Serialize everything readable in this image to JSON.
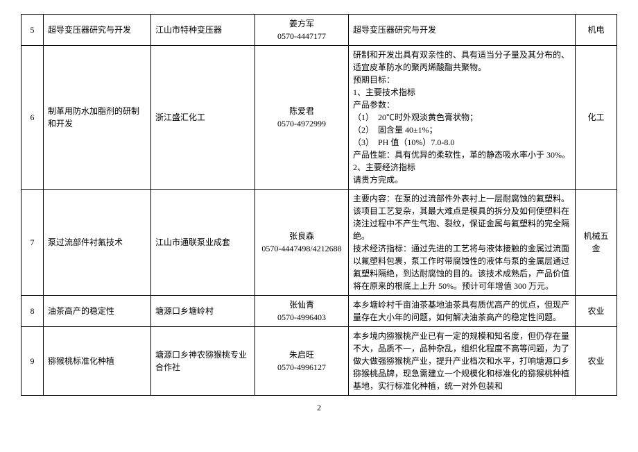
{
  "table": {
    "rows": [
      {
        "idx": "5",
        "name": "超导变压器研究与开发",
        "org": "江山市特种变压器",
        "contact": "姜方军\n0570-4447177",
        "desc": "超导变压器研究与开发",
        "cat": "机电"
      },
      {
        "idx": "6",
        "name": "制革用防水加脂剂的研制和开发",
        "org": "浙江盛汇化工",
        "contact": "陈爱君\n0570-4972999",
        "desc": "研制和开发出具有双亲性的、具有适当分子量及其分布的、适宜皮革防水的聚丙烯酸酯共聚物。\n预期目标：\n1、主要技术指标\n产品参数：\n（1）　20℃时外观淡黄色膏状物；\n（2）　固含量 40±1%；\n（3）　PH 值（10%）7.0-8.0\n产品性能：具有优异的柔软性，革的静态吸水率小于 30%。\n2、主要经济指标\n请贵方完成。",
        "cat": "化工"
      },
      {
        "idx": "7",
        "name": "泵过流部件衬氟技术",
        "org": "江山市通联泵业成套",
        "contact": "张良森\n0570-4447498/4212688",
        "desc": "主要内容：在泵的过流部件外表衬上一层耐腐蚀的氟塑料。该项目工艺复杂，其最大难点是模具的拆分及如何使塑料在浇注过程中不产生气泡、裂纹，保证金属与氟塑料的完全隔绝。\n技术经济指标：通过先进的工艺将与液体接触的金属过流面以氟塑料包裹，泵工作时带腐蚀性的液体与泵的金属层通过氟塑料隔绝，到达耐腐蚀的目的。该技术成熟后，产品价值将在原来的根底上上升 50%。预计可年增值 300 万元。",
        "cat": "机械五金"
      },
      {
        "idx": "8",
        "name": "油茶高产的稳定性",
        "org": "塘源口乡塘岭村",
        "contact": "张仙青\n0570-4996403",
        "desc": "本乡塘岭村千亩油茶基地油茶具有质优高产的优点，但现产量存在大小年的问题，如何解决油茶高产的稳定性问题。",
        "cat": "农业"
      },
      {
        "idx": "9",
        "name": "猕猴桃标准化种植",
        "org": "塘源口乡神农猕猴桃专业合作社",
        "contact": "朱启旺\n0570-4996127",
        "desc": "本乡境内猕猴桃产业已有一定的规模和知名度，但仍存在量不大，品质不一，品种杂乱，组织化程度不高等问题，为了做大做强猕猴桃产业，提升产业档次和水平，打响塘源口乡猕猴桃品牌，现急需建立一个规模化和标准化的猕猴桃种植基地，实行标准化种植，统一对外包装和",
        "cat": "农业"
      }
    ]
  },
  "page_number": "2"
}
